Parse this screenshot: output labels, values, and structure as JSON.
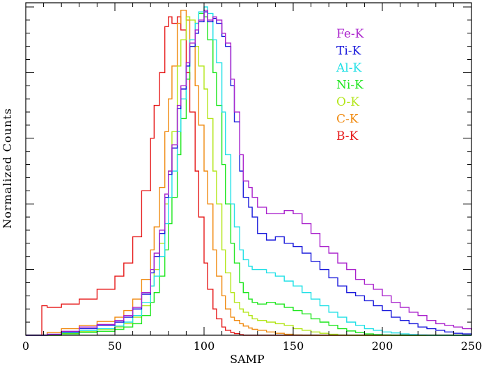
{
  "chart_data": {
    "type": "line",
    "step": true,
    "xlabel": "SAMP",
    "ylabel": "Normalized Counts",
    "xlim": [
      0,
      250
    ],
    "ylim": [
      0,
      1.0
    ],
    "x_ticks": [
      0,
      50,
      100,
      150,
      200,
      250
    ],
    "x_tick_labels": [
      "0",
      "50",
      "100",
      "150",
      "200",
      "250"
    ],
    "y_tick_labels_shown": false,
    "grid": false,
    "legend_position": "top-right",
    "x": [
      0,
      5,
      9,
      12,
      20,
      30,
      40,
      50,
      55,
      60,
      65,
      70,
      72,
      75,
      78,
      80,
      82,
      85,
      87,
      90,
      92,
      95,
      97,
      100,
      102,
      105,
      107,
      110,
      112,
      115,
      117,
      120,
      122,
      125,
      127,
      130,
      135,
      140,
      145,
      150,
      155,
      160,
      165,
      170,
      175,
      180,
      185,
      190,
      195,
      200,
      205,
      210,
      215,
      220,
      225,
      230,
      235,
      240,
      245,
      250
    ],
    "series": [
      {
        "name": "Fe-K",
        "color": "#aa22cc",
        "values": [
          0,
          0,
          0,
          0.003,
          0.012,
          0.025,
          0.033,
          0.045,
          0.06,
          0.085,
          0.13,
          0.2,
          0.25,
          0.32,
          0.43,
          0.5,
          0.58,
          0.7,
          0.76,
          0.83,
          0.89,
          0.93,
          0.96,
          0.99,
          0.96,
          0.97,
          0.96,
          0.92,
          0.89,
          0.78,
          0.68,
          0.55,
          0.47,
          0.45,
          0.42,
          0.39,
          0.37,
          0.37,
          0.38,
          0.37,
          0.34,
          0.31,
          0.27,
          0.25,
          0.22,
          0.2,
          0.17,
          0.155,
          0.14,
          0.12,
          0.1,
          0.085,
          0.07,
          0.06,
          0.045,
          0.035,
          0.03,
          0.025,
          0.02,
          0.015
        ]
      },
      {
        "name": "Ti-K",
        "color": "#1a1adb",
        "values": [
          0,
          0,
          0,
          0.003,
          0.01,
          0.02,
          0.03,
          0.04,
          0.055,
          0.08,
          0.125,
          0.19,
          0.24,
          0.31,
          0.42,
          0.49,
          0.57,
          0.69,
          0.75,
          0.82,
          0.88,
          0.92,
          0.955,
          0.985,
          0.955,
          0.965,
          0.95,
          0.91,
          0.88,
          0.76,
          0.65,
          0.5,
          0.42,
          0.39,
          0.36,
          0.31,
          0.29,
          0.3,
          0.28,
          0.27,
          0.25,
          0.225,
          0.2,
          0.175,
          0.15,
          0.13,
          0.12,
          0.105,
          0.09,
          0.075,
          0.055,
          0.045,
          0.035,
          0.025,
          0.02,
          0.015,
          0.01,
          0.006,
          0.004,
          0.002
        ]
      },
      {
        "name": "Al-K",
        "color": "#22e0e6",
        "values": [
          0,
          0,
          0,
          0.002,
          0.008,
          0.014,
          0.02,
          0.028,
          0.04,
          0.06,
          0.1,
          0.15,
          0.18,
          0.24,
          0.34,
          0.42,
          0.5,
          0.62,
          0.72,
          0.82,
          0.9,
          0.95,
          0.985,
          1.0,
          0.98,
          0.9,
          0.83,
          0.68,
          0.55,
          0.4,
          0.33,
          0.26,
          0.23,
          0.21,
          0.2,
          0.2,
          0.19,
          0.18,
          0.165,
          0.15,
          0.13,
          0.11,
          0.09,
          0.07,
          0.055,
          0.04,
          0.03,
          0.02,
          0.015,
          0.01,
          0.007,
          0.004,
          0.002,
          0.001,
          0,
          0,
          0,
          0,
          0,
          0
        ]
      },
      {
        "name": "Ni-K",
        "color": "#1ee61e",
        "values": [
          0,
          0,
          0,
          0,
          0.004,
          0.008,
          0.012,
          0.018,
          0.025,
          0.035,
          0.06,
          0.1,
          0.13,
          0.18,
          0.26,
          0.34,
          0.42,
          0.55,
          0.66,
          0.78,
          0.88,
          0.95,
          0.98,
          0.97,
          0.9,
          0.8,
          0.7,
          0.52,
          0.4,
          0.28,
          0.22,
          0.16,
          0.13,
          0.11,
          0.1,
          0.095,
          0.1,
          0.095,
          0.085,
          0.075,
          0.065,
          0.05,
          0.04,
          0.03,
          0.02,
          0.013,
          0.008,
          0.004,
          0.002,
          0.001,
          0,
          0,
          0,
          0,
          0,
          0,
          0,
          0,
          0,
          0
        ]
      },
      {
        "name": "O-K",
        "color": "#b3e61a",
        "values": [
          0,
          0,
          0,
          0,
          0.006,
          0.012,
          0.018,
          0.025,
          0.035,
          0.055,
          0.09,
          0.15,
          0.2,
          0.28,
          0.4,
          0.5,
          0.62,
          0.82,
          0.9,
          0.97,
          0.96,
          0.88,
          0.82,
          0.75,
          0.66,
          0.5,
          0.4,
          0.26,
          0.19,
          0.13,
          0.1,
          0.08,
          0.07,
          0.06,
          0.05,
          0.045,
          0.04,
          0.035,
          0.03,
          0.02,
          0.015,
          0.01,
          0.006,
          0.003,
          0.001,
          0,
          0,
          0,
          0,
          0,
          0,
          0,
          0,
          0,
          0,
          0,
          0,
          0,
          0,
          0
        ]
      },
      {
        "name": "C-K",
        "color": "#f08a10",
        "values": [
          0,
          0,
          0,
          0.008,
          0.02,
          0.03,
          0.042,
          0.055,
          0.075,
          0.11,
          0.17,
          0.26,
          0.33,
          0.45,
          0.62,
          0.72,
          0.82,
          0.95,
          0.99,
          0.96,
          0.88,
          0.76,
          0.64,
          0.5,
          0.4,
          0.26,
          0.18,
          0.12,
          0.08,
          0.055,
          0.045,
          0.035,
          0.028,
          0.022,
          0.018,
          0.015,
          0.01,
          0.006,
          0.003,
          0.001,
          0,
          0,
          0,
          0,
          0,
          0,
          0,
          0,
          0,
          0,
          0,
          0,
          0,
          0,
          0,
          0,
          0,
          0,
          0,
          0
        ]
      },
      {
        "name": "B-K",
        "color": "#e61a1a",
        "values": [
          0,
          0,
          0.09,
          0.085,
          0.095,
          0.11,
          0.14,
          0.18,
          0.22,
          0.3,
          0.44,
          0.6,
          0.7,
          0.8,
          0.94,
          0.97,
          0.95,
          0.97,
          0.93,
          0.8,
          0.68,
          0.5,
          0.36,
          0.22,
          0.14,
          0.08,
          0.05,
          0.025,
          0.015,
          0.008,
          0.005,
          0.002,
          0,
          0,
          0,
          0,
          0,
          0,
          0,
          0,
          0,
          0,
          0,
          0,
          0,
          0,
          0,
          0,
          0,
          0,
          0,
          0,
          0,
          0,
          0,
          0,
          0,
          0,
          0,
          0
        ]
      }
    ]
  }
}
